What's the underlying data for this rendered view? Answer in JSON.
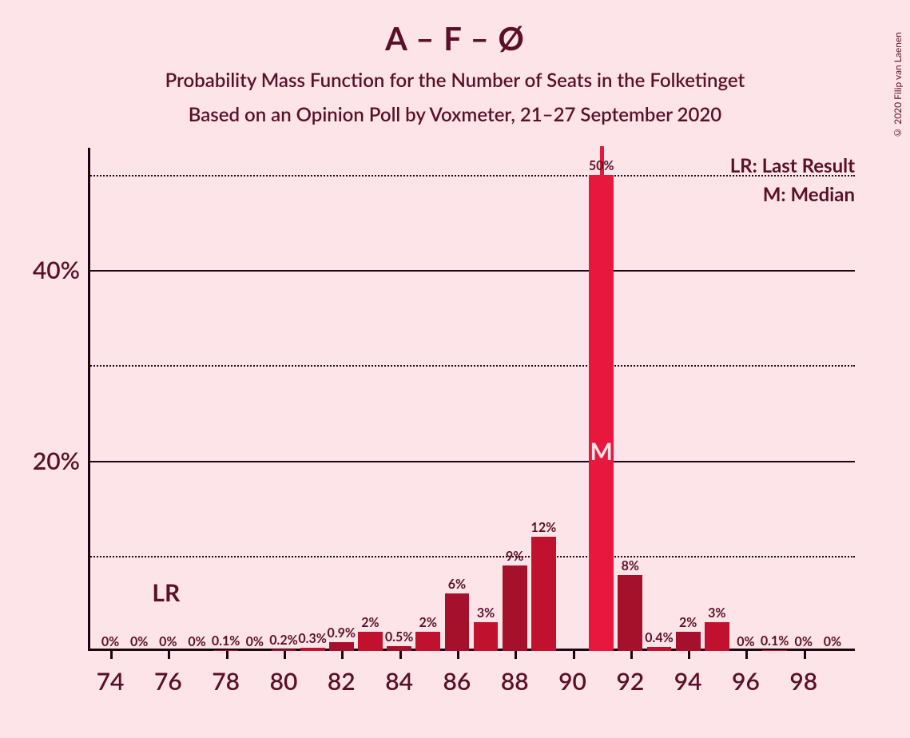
{
  "copyright": "© 2020 Filip van Laenen",
  "title": "A – F – Ø",
  "subtitle1": "Probability Mass Function for the Number of Seats in the Folketinget",
  "subtitle2": "Based on an Opinion Poll by Voxmeter, 21–27 September 2020",
  "legend": {
    "lr": "LR: Last Result",
    "m": "M: Median"
  },
  "lr_marker": "LR",
  "median_marker": "M",
  "chart": {
    "type": "bar",
    "background_color": "#fce4e8",
    "text_color": "#5a1028",
    "axis_color": "#1a0510",
    "title_fontsize": 40,
    "subtitle_fontsize": 24,
    "axis_label_fontsize": 30,
    "bar_label_fontsize": 16,
    "ylim": [
      0,
      52
    ],
    "y_ticks_major": [
      0,
      20,
      40
    ],
    "y_ticks_minor": [
      10,
      30,
      50
    ],
    "y_tick_labels": {
      "20": "20%",
      "40": "40%"
    },
    "x_range": [
      74,
      98
    ],
    "x_tick_step": 2,
    "x_tick_labels": [
      "74",
      "76",
      "78",
      "80",
      "82",
      "84",
      "86",
      "88",
      "90",
      "92",
      "94",
      "96",
      "98"
    ],
    "lr_x": 76,
    "median_x": 91,
    "median_color": "#e8173d",
    "bar_width_ratio": 0.85,
    "colors": {
      "odd": "#c0122e",
      "even": "#a5112b",
      "median": "#e8173d"
    },
    "bars": [
      {
        "x": 74,
        "v": 0,
        "label": "0%"
      },
      {
        "x": 75,
        "v": 0,
        "label": "0%"
      },
      {
        "x": 76,
        "v": 0,
        "label": "0%"
      },
      {
        "x": 77,
        "v": 0,
        "label": "0%"
      },
      {
        "x": 78,
        "v": 0.1,
        "label": "0.1%"
      },
      {
        "x": 79,
        "v": 0,
        "label": "0%"
      },
      {
        "x": 80,
        "v": 0.2,
        "label": "0.2%"
      },
      {
        "x": 81,
        "v": 0.3,
        "label": "0.3%"
      },
      {
        "x": 82,
        "v": 0.9,
        "label": "0.9%"
      },
      {
        "x": 83,
        "v": 2,
        "label": "2%"
      },
      {
        "x": 84,
        "v": 0.5,
        "label": "0.5%"
      },
      {
        "x": 85,
        "v": 2,
        "label": "2%"
      },
      {
        "x": 86,
        "v": 6,
        "label": "6%"
      },
      {
        "x": 87,
        "v": 3,
        "label": "3%"
      },
      {
        "x": 88,
        "v": 9,
        "label": "9%"
      },
      {
        "x": 89,
        "v": 12,
        "label": "12%"
      },
      {
        "x": 91,
        "v": 50,
        "label": "50%"
      },
      {
        "x": 92,
        "v": 8,
        "label": "8%"
      },
      {
        "x": 93,
        "v": 0.4,
        "label": "0.4%"
      },
      {
        "x": 94,
        "v": 2,
        "label": "2%"
      },
      {
        "x": 95,
        "v": 3,
        "label": "3%"
      },
      {
        "x": 96,
        "v": 0,
        "label": "0%"
      },
      {
        "x": 97,
        "v": 0.1,
        "label": "0.1%"
      },
      {
        "x": 98,
        "v": 0,
        "label": "0%"
      },
      {
        "x": 99,
        "v": 0,
        "label": "0%"
      }
    ]
  }
}
